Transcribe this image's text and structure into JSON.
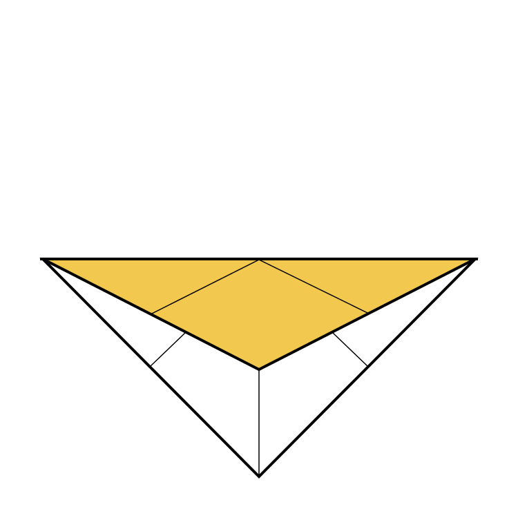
{
  "diagram": {
    "kind": "origami-fold-step",
    "colors": {
      "paper_back": "#ffffff",
      "paper_front": "#f2c84f",
      "outline": "#000000",
      "crease": "#000000"
    }
  }
}
